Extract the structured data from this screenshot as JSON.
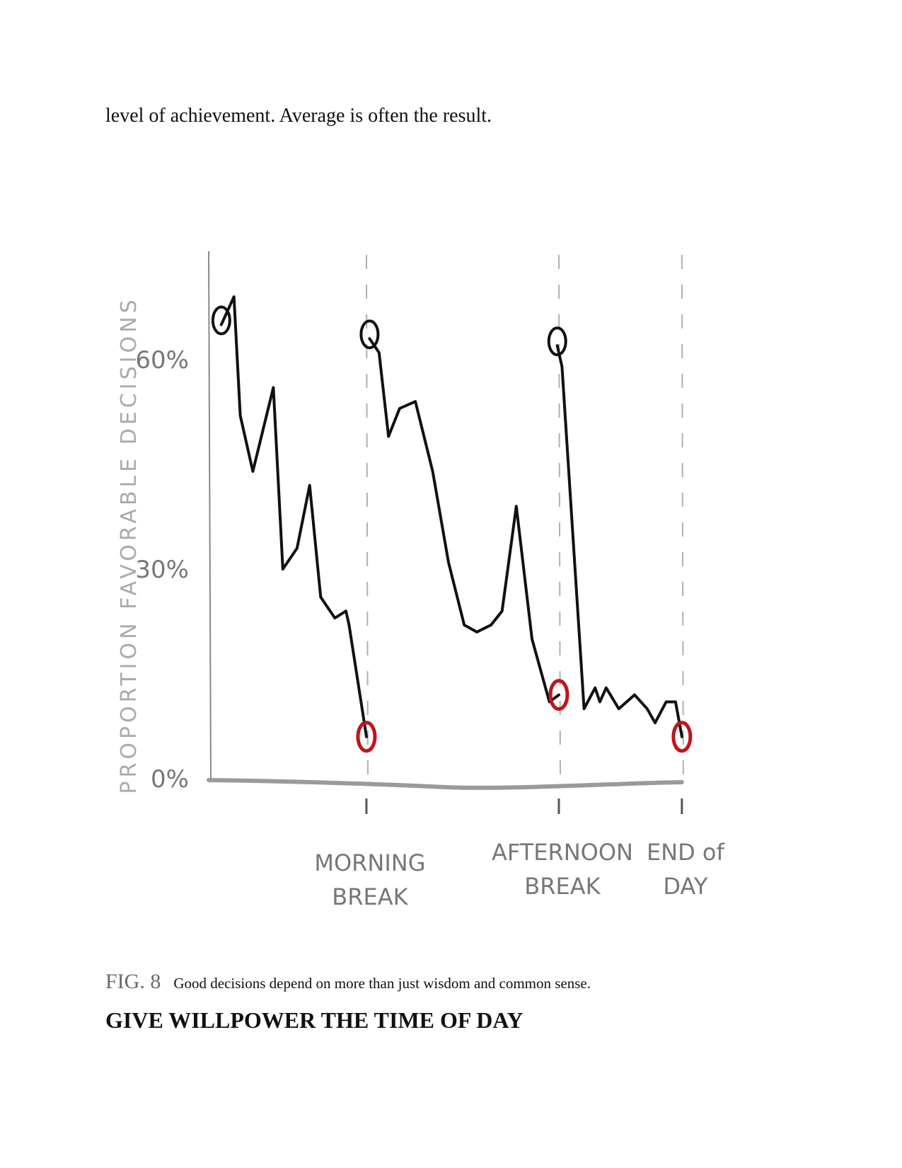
{
  "document": {
    "body_text": "level of achievement. Average is often the result.",
    "caption": {
      "fig_number": "FIG. 8",
      "text": "Good decisions depend on more than just wisdom and common sense."
    },
    "section_heading": "GIVE WILLPOWER THE TIME OF DAY"
  },
  "chart_data": {
    "type": "line",
    "title": "",
    "ylabel": "PROPORTION FAVORABLE DECISIONS",
    "xlabel": "",
    "ylim": [
      0,
      75
    ],
    "y_ticks": [
      "60%",
      "30%",
      "0%"
    ],
    "y_tick_values": [
      60,
      30,
      0
    ],
    "breaks": [
      {
        "label_line1": "MORNING",
        "label_line2": "BREAK",
        "x": 100
      },
      {
        "label_line1": "AFTERNOON",
        "label_line2": "BREAK",
        "x": 222
      },
      {
        "label_line1": "END of",
        "label_line2": "DAY",
        "x": 300
      }
    ],
    "xlim": [
      0,
      305
    ],
    "colors": {
      "line": "#111111",
      "break_marker": "#c0141b",
      "start_marker": "#111111",
      "axis": "#9a9a9a",
      "label": "#777777"
    },
    "series": [
      {
        "segment": 1,
        "points": [
          [
            8,
            65
          ],
          [
            16,
            69
          ],
          [
            20,
            52
          ],
          [
            28,
            44
          ],
          [
            41,
            56
          ],
          [
            47,
            30
          ],
          [
            56,
            33
          ],
          [
            64,
            42
          ],
          [
            71,
            26
          ],
          [
            80,
            23
          ],
          [
            87,
            24
          ],
          [
            89,
            22
          ],
          [
            100,
            6
          ]
        ]
      },
      {
        "segment": 2,
        "points": [
          [
            102,
            63
          ],
          [
            108,
            61
          ],
          [
            114,
            49
          ],
          [
            121,
            53
          ],
          [
            131,
            54
          ],
          [
            142,
            44
          ],
          [
            152,
            31
          ],
          [
            162,
            22
          ],
          [
            170,
            21
          ],
          [
            179,
            22
          ],
          [
            186,
            24
          ],
          [
            195,
            39
          ],
          [
            205,
            20
          ],
          [
            216,
            11
          ],
          [
            222,
            12
          ]
        ]
      },
      {
        "segment": 3,
        "points": [
          [
            221,
            62
          ],
          [
            224,
            59
          ],
          [
            238,
            10
          ],
          [
            245,
            13
          ],
          [
            248,
            11
          ],
          [
            252,
            13
          ],
          [
            260,
            10
          ],
          [
            270,
            12
          ],
          [
            278,
            10
          ],
          [
            283,
            8
          ],
          [
            290,
            11
          ],
          [
            296,
            11
          ],
          [
            300,
            6
          ]
        ]
      }
    ],
    "start_markers": [
      [
        8,
        65
      ],
      [
        102,
        63
      ],
      [
        221,
        62
      ]
    ],
    "break_markers": [
      [
        100,
        6
      ],
      [
        222,
        12
      ],
      [
        300,
        6
      ]
    ]
  }
}
